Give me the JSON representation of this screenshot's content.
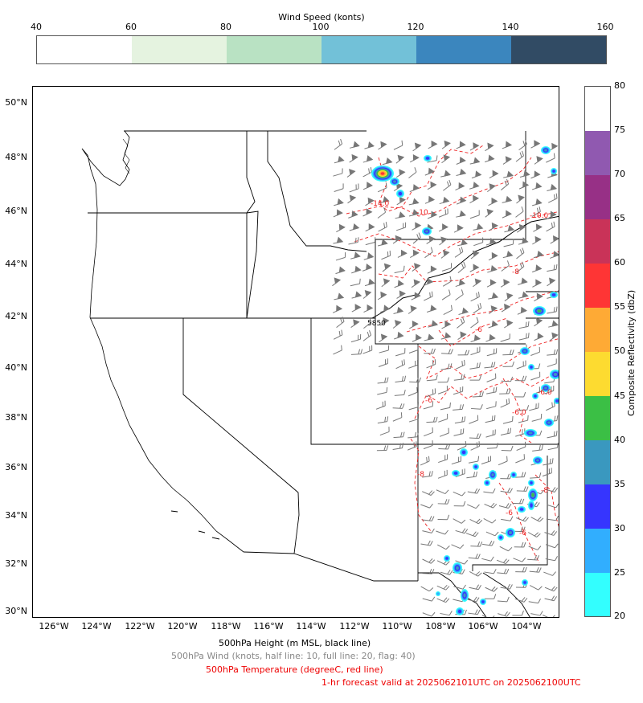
{
  "top_colorbar": {
    "title": "Wind Speed (konts)",
    "ticks": [
      "40",
      "60",
      "80",
      "100",
      "120",
      "140",
      "160"
    ],
    "colors": [
      "#ffffff",
      "#e5f3e0",
      "#b9e2c3",
      "#72c1d8",
      "#3b86be",
      "#314b64"
    ]
  },
  "right_colorbar": {
    "label": "Composite Reflectivity (dbZ)",
    "ticks": [
      "80",
      "75",
      "70",
      "65",
      "60",
      "55",
      "50",
      "45",
      "40",
      "35",
      "30",
      "25",
      "20"
    ],
    "colors": [
      "#ffffff",
      "#9059b0",
      "#973086",
      "#c93358",
      "#fe3535",
      "#feaa35",
      "#fddb30",
      "#3bbf45",
      "#3a98bf",
      "#3635fe",
      "#31aefe",
      "#33fefe"
    ]
  },
  "map": {
    "lat_labels": [
      "50°N",
      "48°N",
      "46°N",
      "44°N",
      "42°N",
      "40°N",
      "38°N",
      "36°N",
      "34°N",
      "32°N",
      "30°N"
    ],
    "lon_labels": [
      "126°W",
      "124°W",
      "122°W",
      "120°W",
      "118°W",
      "116°W",
      "114°W",
      "112°W",
      "110°W",
      "108°W",
      "106°W",
      "104°W"
    ],
    "contour_labels": {
      "temp": [
        "-14.0",
        "-10",
        "-10.0",
        "-8",
        "-6",
        "-6.0",
        "-6.0",
        "-8",
        "-6",
        "-8",
        "-6",
        "-6"
      ],
      "height": [
        "5850"
      ]
    }
  },
  "captions": {
    "line1": "500hPa Height (m MSL, black line)",
    "line2": "500hPa Wind (knots, half line: 10, full line: 20, flag: 40)",
    "line3": "500hPa Temperature (degreeC, red line)",
    "line4": "1-hr forecast valid at 2025062101UTC on 2025062100UTC"
  }
}
